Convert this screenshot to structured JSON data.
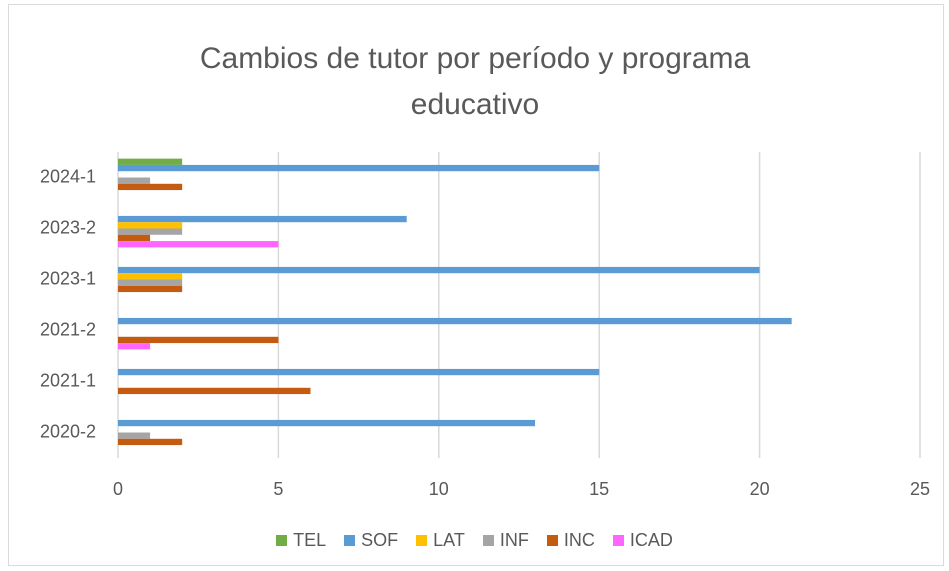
{
  "chart_data": {
    "type": "bar",
    "orientation": "horizontal",
    "title": "Cambios de tutor por período y programa educativo",
    "categories": [
      "2020-2",
      "2021-1",
      "2021-2",
      "2023-1",
      "2023-2",
      "2024-1"
    ],
    "series": [
      {
        "name": "TEL",
        "color": "#70ad47",
        "values": [
          0,
          0,
          0,
          0,
          0,
          2
        ]
      },
      {
        "name": "SOF",
        "color": "#5b9bd5",
        "values": [
          13,
          15,
          21,
          20,
          9,
          15
        ]
      },
      {
        "name": "LAT",
        "color": "#ffc000",
        "values": [
          0,
          0,
          0,
          2,
          2,
          0
        ]
      },
      {
        "name": "INF",
        "color": "#a5a5a5",
        "values": [
          1,
          0,
          0,
          2,
          2,
          1
        ]
      },
      {
        "name": "INC",
        "color": "#c55a11",
        "values": [
          2,
          6,
          5,
          2,
          1,
          2
        ]
      },
      {
        "name": "ICAD",
        "color": "#ff66ff",
        "values": [
          0,
          0,
          1,
          0,
          5,
          0
        ]
      }
    ],
    "xlim": [
      0,
      25
    ],
    "xticks": [
      0,
      5,
      10,
      15,
      20,
      25
    ],
    "grid": true,
    "legend": "bottom"
  }
}
